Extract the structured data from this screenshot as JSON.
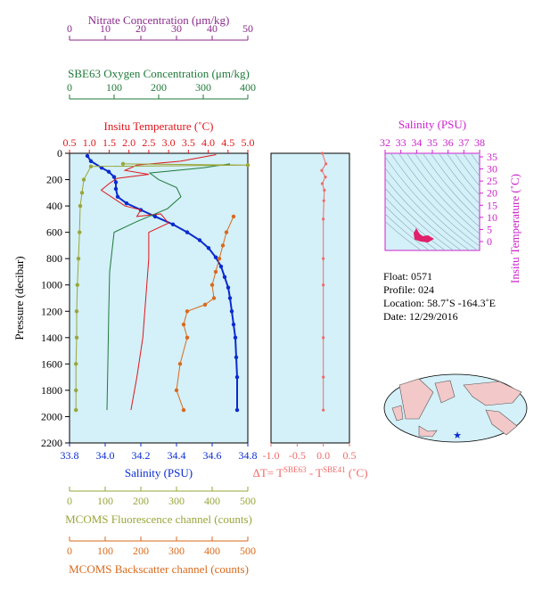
{
  "colors": {
    "nitrate": "#8a2a8a",
    "oxygen": "#1f7a3a",
    "temperature": "#e0161b",
    "salinity": "#0a2bd0",
    "fluorescence": "#9aa63a",
    "backscatter": "#d96a1c",
    "delta_t": "#f06a6a",
    "ts_axis": "#cc22cc",
    "plot_bg": "#d4f0f8"
  },
  "axes": {
    "nitrate": {
      "label": "Nitrate Concentration (μm/kg)",
      "ticks": [
        "0",
        "10",
        "20",
        "30",
        "40",
        "50"
      ]
    },
    "oxygen": {
      "label": "SBE63 Oxygen Concentration (μm/kg)",
      "ticks": [
        "0",
        "100",
        "200",
        "300",
        "400"
      ]
    },
    "temperature": {
      "label": "Insitu Temperature (˚C)",
      "ticks": [
        "0.5",
        "1.0",
        "1.5",
        "2.0",
        "2.5",
        "3.0",
        "3.5",
        "4.0",
        "4.5",
        "5.0"
      ]
    },
    "pressure": {
      "label": "Pressure (decibar)",
      "ticks": [
        "0",
        "200",
        "400",
        "600",
        "800",
        "1000",
        "1200",
        "1400",
        "1600",
        "1800",
        "2000",
        "2200"
      ]
    },
    "salinity": {
      "label": "Salinity (PSU)",
      "ticks": [
        "33.8",
        "34.0",
        "34.2",
        "34.4",
        "34.6",
        "34.8"
      ]
    },
    "fluorescence": {
      "label": "MCOMS Fluorescence channel (counts)",
      "ticks": [
        "0",
        "100",
        "200",
        "300",
        "400",
        "500"
      ]
    },
    "backscatter": {
      "label": "MCOMS Backscatter channel (counts)",
      "ticks": [
        "0",
        "100",
        "200",
        "300",
        "400",
        "500"
      ]
    },
    "delta_t": {
      "label_main": "ΔT= T",
      "sup1": "SBE63",
      "label_mid": " - T",
      "sup2": "SBE41",
      "label_unit": " (˚C)",
      "ticks": [
        "-1.0",
        "-0.5",
        "0.0",
        "0.5"
      ]
    },
    "ts_salinity": {
      "label": "Salinity (PSU)",
      "ticks": [
        "32",
        "33",
        "34",
        "35",
        "36",
        "37",
        "38"
      ]
    },
    "ts_temperature": {
      "label": "Insitu Temperature (˚C)",
      "ticks": [
        "0",
        "5",
        "10",
        "15",
        "20",
        "25",
        "30",
        "35"
      ]
    }
  },
  "info": {
    "float": "Float:  0571",
    "profile": "Profile:  024",
    "location": "Location:  58.7˚S  -164.3˚E",
    "date": "Date:  12/29/2016"
  },
  "chart_data": {
    "type": "line",
    "y_axis": "pressure",
    "ylim": [
      0,
      2200
    ],
    "series": [
      {
        "key": "salinity",
        "xlim": [
          33.8,
          34.8
        ],
        "x": [
          33.9,
          33.92,
          33.98,
          34.02,
          34.05,
          34.06,
          34.06,
          34.07,
          34.12,
          34.2,
          34.28,
          34.38,
          34.46,
          34.53,
          34.58,
          34.62,
          34.65,
          34.67,
          34.69,
          34.7,
          34.71,
          34.72,
          34.73,
          34.735,
          34.74,
          34.74
        ],
        "y": [
          20,
          60,
          110,
          140,
          180,
          220,
          270,
          330,
          380,
          430,
          480,
          540,
          600,
          660,
          720,
          790,
          860,
          940,
          1020,
          1100,
          1200,
          1300,
          1400,
          1550,
          1700,
          1950
        ]
      },
      {
        "key": "temperature",
        "xlim": [
          0.5,
          5.0
        ],
        "x": [
          4.2,
          3.3,
          2.2,
          1.9,
          2.5,
          1.7,
          1.5,
          1.3,
          1.6,
          1.9,
          2.3,
          2.2,
          2.8,
          3.0,
          2.5,
          2.5,
          2.45,
          2.4,
          2.35,
          2.2,
          2.05
        ],
        "y": [
          10,
          60,
          90,
          130,
          160,
          190,
          230,
          280,
          340,
          400,
          430,
          480,
          460,
          530,
          600,
          800,
          1000,
          1200,
          1400,
          1700,
          1950
        ]
      },
      {
        "key": "oxygen",
        "xlim": [
          0,
          400
        ],
        "x": [
          360,
          300,
          180,
          200,
          240,
          250,
          220,
          150,
          100,
          90,
          88,
          86,
          84
        ],
        "y": [
          80,
          110,
          150,
          200,
          260,
          330,
          420,
          520,
          600,
          900,
          1200,
          1600,
          1950
        ]
      },
      {
        "key": "fluorescence",
        "xlim": [
          0,
          500
        ],
        "x": [
          150,
          500,
          60,
          40,
          35,
          30,
          28,
          25,
          22,
          20,
          20,
          18,
          18,
          18
        ],
        "y": [
          80,
          90,
          100,
          200,
          300,
          400,
          600,
          800,
          1000,
          1200,
          1400,
          1600,
          1800,
          1950
        ]
      },
      {
        "key": "backscatter",
        "xlim": [
          0,
          500
        ],
        "x": [
          460,
          440,
          430,
          420,
          410,
          400,
          405,
          380,
          330,
          320,
          330,
          310,
          300,
          320
        ],
        "y": [
          480,
          600,
          700,
          800,
          900,
          1000,
          1100,
          1150,
          1200,
          1300,
          1400,
          1600,
          1800,
          1950
        ]
      },
      {
        "key": "delta_t",
        "xlim": [
          -1.0,
          0.5
        ],
        "x": [
          -0.02,
          0.05,
          -0.03,
          0.04,
          -0.02,
          0.02,
          0.01,
          0.0,
          0.0,
          0.0,
          0.0,
          0.0,
          0.0
        ],
        "y": [
          0,
          80,
          130,
          180,
          230,
          280,
          360,
          500,
          800,
          1000,
          1400,
          1700,
          1950
        ]
      }
    ]
  }
}
